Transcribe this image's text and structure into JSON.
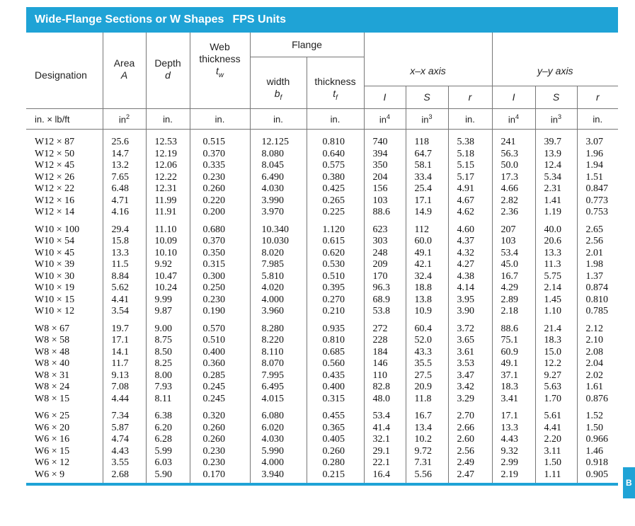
{
  "title": {
    "main": "Wide-Flange Sections or W Shapes",
    "units": "FPS Units"
  },
  "headers": {
    "designation": "Designation",
    "area": "Area",
    "area_sym": "A",
    "depth": "Depth",
    "depth_sym": "d",
    "web": "Web",
    "web_thickness": "thickness",
    "web_sym": "t",
    "web_sub": "w",
    "flange": "Flange",
    "flange_width": "width",
    "flange_width_sym": "b",
    "flange_width_sub": "f",
    "flange_thickness": "thickness",
    "flange_thickness_sym": "t",
    "flange_thickness_sub": "f",
    "xx_axis": "x–x axis",
    "yy_axis": "y–y axis",
    "I": "I",
    "S": "S",
    "r": "r"
  },
  "units": {
    "designation": "in. × lb/ft",
    "area": "in",
    "area_exp": "2",
    "depth": "in.",
    "web": "in.",
    "flange_width": "in.",
    "flange_thickness": "in.",
    "Ix": "in",
    "Ix_exp": "4",
    "Sx": "in",
    "Sx_exp": "3",
    "rx": "in.",
    "Iy": "in",
    "Iy_exp": "4",
    "Sy": "in",
    "Sy_exp": "3",
    "ry": "in."
  },
  "groups": [
    {
      "designation": "W12 × 87\nW12 × 50\nW12 × 45\nW12 × 26\nW12 × 22\nW12 × 16\nW12 × 14",
      "area": "25.6\n14.7\n13.2\n7.65\n6.48\n4.71\n4.16",
      "depth": "12.53\n12.19\n12.06\n12.22\n12.31\n11.99\n11.91",
      "tw": "0.515\n0.370\n0.335\n0.230\n0.260\n0.220\n0.200",
      "bf": "12.125\n8.080\n8.045\n6.490\n4.030\n3.990\n3.970",
      "tf": "0.810\n0.640\n0.575\n0.380\n0.425\n0.265\n0.225",
      "Ix": "740\n394\n350\n204\n156\n103\n88.6",
      "Sx": "118\n64.7\n58.1\n33.4\n25.4\n17.1\n14.9",
      "rx": "5.38\n5.18\n5.15\n5.17\n4.91\n4.67\n4.62",
      "Iy": "241\n56.3\n50.0\n17.3\n4.66\n2.82\n2.36",
      "Sy": "39.7\n13.9\n12.4\n5.34\n2.31\n1.41\n1.19",
      "ry": "3.07\n1.96\n1.94\n1.51\n0.847\n0.773\n0.753"
    },
    {
      "designation": "W10 × 100\nW10 × 54\nW10 × 45\nW10 × 39\nW10 × 30\nW10 × 19\nW10 × 15\nW10 × 12",
      "area": "29.4\n15.8\n13.3\n11.5\n8.84\n5.62\n4.41\n3.54",
      "depth": "11.10\n10.09\n10.10\n9.92\n10.47\n10.24\n9.99\n9.87",
      "tw": "0.680\n0.370\n0.350\n0.315\n0.300\n0.250\n0.230\n0.190",
      "bf": "10.340\n10.030\n8.020\n7.985\n5.810\n4.020\n4.000\n3.960",
      "tf": "1.120\n0.615\n0.620\n0.530\n0.510\n0.395\n0.270\n0.210",
      "Ix": "623\n303\n248\n209\n170\n96.3\n68.9\n53.8",
      "Sx": "112\n60.0\n49.1\n42.1\n32.4\n18.8\n13.8\n10.9",
      "rx": "4.60\n4.37\n4.32\n4.27\n4.38\n4.14\n3.95\n3.90",
      "Iy": "207\n103\n53.4\n45.0\n16.7\n4.29\n2.89\n2.18",
      "Sy": "40.0\n20.6\n13.3\n11.3\n5.75\n2.14\n1.45\n1.10",
      "ry": "2.65\n2.56\n2.01\n1.98\n1.37\n0.874\n0.810\n0.785"
    },
    {
      "designation": "W8 × 67\nW8 × 58\nW8 × 48\nW8 × 40\nW8 × 31\nW8 × 24\nW8 × 15",
      "area": "19.7\n17.1\n14.1\n11.7\n9.13\n7.08\n4.44",
      "depth": "9.00\n8.75\n8.50\n8.25\n8.00\n7.93\n8.11",
      "tw": "0.570\n0.510\n0.400\n0.360\n0.285\n0.245\n0.245",
      "bf": "8.280\n8.220\n8.110\n8.070\n7.995\n6.495\n4.015",
      "tf": "0.935\n0.810\n0.685\n0.560\n0.435\n0.400\n0.315",
      "Ix": "272\n228\n184\n146\n110\n82.8\n48.0",
      "Sx": "60.4\n52.0\n43.3\n35.5\n27.5\n20.9\n11.8",
      "rx": "3.72\n3.65\n3.61\n3.53\n3.47\n3.42\n3.29",
      "Iy": "88.6\n75.1\n60.9\n49.1\n37.1\n18.3\n3.41",
      "Sy": "21.4\n18.3\n15.0\n12.2\n9.27\n5.63\n1.70",
      "ry": "2.12\n2.10\n2.08\n2.04\n2.02\n1.61\n0.876"
    },
    {
      "designation": "W6 × 25\nW6 × 20\nW6 × 16\nW6 × 15\nW6 × 12\nW6 × 9",
      "area": "7.34\n5.87\n4.74\n4.43\n3.55\n2.68",
      "depth": "6.38\n6.20\n6.28\n5.99\n6.03\n5.90",
      "tw": "0.320\n0.260\n0.260\n0.230\n0.230\n0.170",
      "bf": "6.080\n6.020\n4.030\n5.990\n4.000\n3.940",
      "tf": "0.455\n0.365\n0.405\n0.260\n0.280\n0.215",
      "Ix": "53.4\n41.4\n32.1\n29.1\n22.1\n16.4",
      "Sx": "16.7\n13.4\n10.2\n9.72\n7.31\n5.56",
      "rx": "2.70\n2.66\n2.60\n2.56\n2.49\n2.47",
      "Iy": "17.1\n13.3\n4.43\n9.32\n2.99\n2.19",
      "Sy": "5.61\n4.41\n2.20\n3.11\n1.50\n1.11",
      "ry": "1.52\n1.50\n0.966\n1.46\n0.918\n0.905"
    }
  ],
  "side_tab": "B"
}
